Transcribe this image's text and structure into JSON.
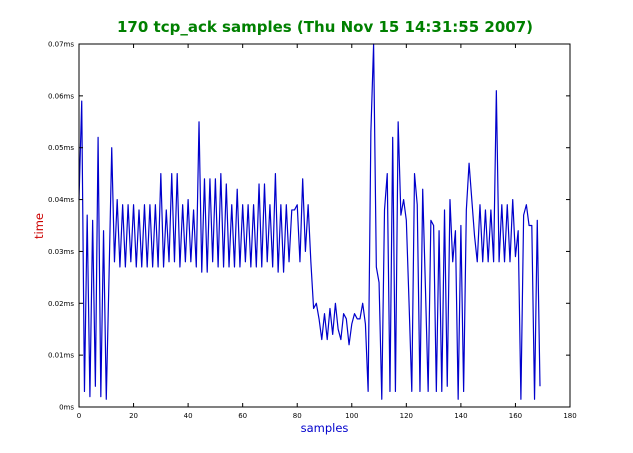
{
  "chart_data": {
    "type": "line",
    "title": "170 tcp_ack samples (Thu Nov 15 14:31:55 2007)",
    "xlabel": "samples",
    "ylabel": "time",
    "xlim": [
      0,
      180
    ],
    "ylim": [
      0,
      0.07
    ],
    "xticks": [
      "0",
      "20",
      "40",
      "60",
      "80",
      "100",
      "120",
      "140",
      "160",
      "180"
    ],
    "yticks": [
      "0ms",
      "0.01ms",
      "0.02ms",
      "0.03ms",
      "0.04ms",
      "0.05ms",
      "0.06ms",
      "0.07ms"
    ],
    "grid": false,
    "colors": {
      "title": "#008000",
      "line": "#0000cc",
      "xlabel": "#0000cc",
      "ylabel": "#cc0000"
    },
    "series": [
      {
        "values": [
          0.04,
          0.059,
          0.003,
          0.037,
          0.002,
          0.036,
          0.004,
          0.052,
          0.002,
          0.034,
          0.0015,
          0.025,
          0.05,
          0.028,
          0.04,
          0.027,
          0.039,
          0.027,
          0.039,
          0.028,
          0.039,
          0.027,
          0.038,
          0.027,
          0.039,
          0.027,
          0.039,
          0.027,
          0.039,
          0.027,
          0.045,
          0.027,
          0.038,
          0.028,
          0.045,
          0.028,
          0.045,
          0.027,
          0.039,
          0.028,
          0.04,
          0.028,
          0.038,
          0.027,
          0.055,
          0.026,
          0.044,
          0.026,
          0.044,
          0.028,
          0.044,
          0.027,
          0.045,
          0.027,
          0.043,
          0.027,
          0.039,
          0.027,
          0.042,
          0.027,
          0.039,
          0.028,
          0.039,
          0.027,
          0.039,
          0.027,
          0.043,
          0.027,
          0.043,
          0.028,
          0.039,
          0.027,
          0.045,
          0.026,
          0.039,
          0.026,
          0.039,
          0.028,
          0.038,
          0.038,
          0.039,
          0.028,
          0.044,
          0.03,
          0.039,
          0.028,
          0.019,
          0.02,
          0.017,
          0.013,
          0.018,
          0.013,
          0.019,
          0.014,
          0.02,
          0.015,
          0.013,
          0.018,
          0.017,
          0.012,
          0.016,
          0.018,
          0.017,
          0.017,
          0.02,
          0.016,
          0.003,
          0.053,
          0.07,
          0.027,
          0.024,
          0.0015,
          0.038,
          0.045,
          0.003,
          0.052,
          0.003,
          0.055,
          0.037,
          0.04,
          0.036,
          0.02,
          0.003,
          0.045,
          0.039,
          0.003,
          0.042,
          0.023,
          0.003,
          0.036,
          0.035,
          0.003,
          0.034,
          0.003,
          0.038,
          0.004,
          0.04,
          0.028,
          0.034,
          0.0015,
          0.035,
          0.003,
          0.038,
          0.047,
          0.04,
          0.033,
          0.028,
          0.039,
          0.028,
          0.038,
          0.028,
          0.038,
          0.028,
          0.061,
          0.028,
          0.039,
          0.028,
          0.039,
          0.028,
          0.04,
          0.029,
          0.034,
          0.0015,
          0.037,
          0.039,
          0.035,
          0.035,
          0.0015,
          0.036,
          0.004
        ]
      }
    ]
  }
}
